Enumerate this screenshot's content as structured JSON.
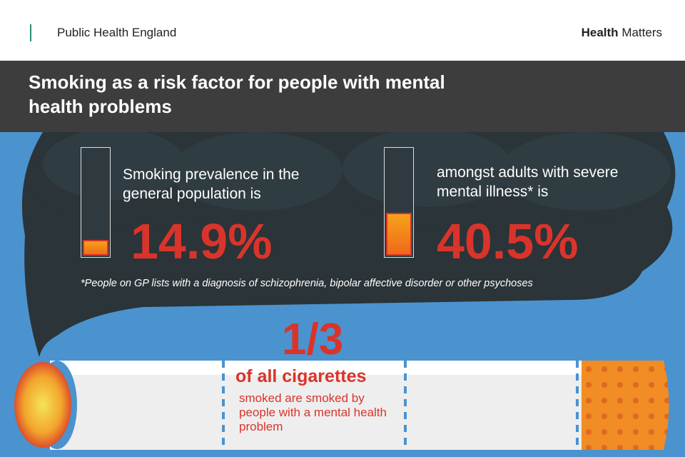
{
  "header": {
    "organisation": "Public Health England",
    "brand_bold": "Health",
    "brand": "Matters"
  },
  "title": "Smoking as a risk factor for people with mental health problems",
  "stats": [
    {
      "text": "Smoking prevalence in the general population is",
      "value": 14.9,
      "value_label": "14.9%"
    },
    {
      "text": "amongst adults with severe mental illness* is",
      "value": 40.5,
      "value_label": "40.5%"
    }
  ],
  "footnote": "*People on GP lists with a diagnosis of schizophrenia, bipolar affective disorder or other psychoses",
  "cigarette": {
    "fraction": "1/3",
    "headline": "of all cigarettes",
    "text": "smoked are smoked by people with a mental health problem"
  }
}
